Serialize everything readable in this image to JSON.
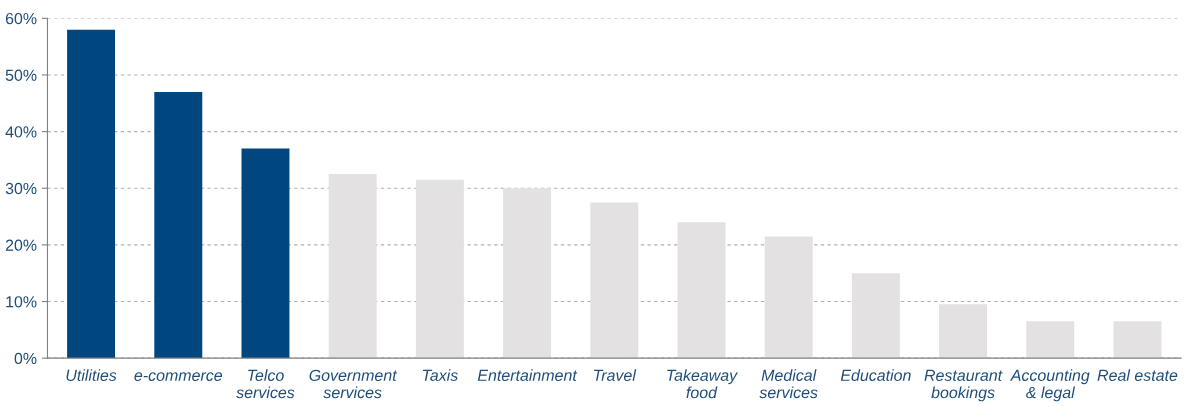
{
  "chart_data": {
    "type": "bar",
    "categories": [
      "Utilities",
      "e-commerce",
      "Telco\nservices",
      "Government\nservices",
      "Taxis",
      "Entertainment",
      "Travel",
      "Takeaway\nfood",
      "Medical\nservices",
      "Education",
      "Restaurant\nbookings",
      "Accounting\n& legal",
      "Real estate"
    ],
    "values": [
      58,
      47,
      37,
      32.5,
      31.5,
      30,
      27.5,
      24,
      21.5,
      15,
      9.5,
      6.5,
      6.5
    ],
    "colors": [
      "#00467f",
      "#00467f",
      "#00467f",
      "#e3e1e2",
      "#e3e1e2",
      "#e3e1e2",
      "#e3e1e2",
      "#e3e1e2",
      "#e3e1e2",
      "#e3e1e2",
      "#e3e1e2",
      "#e3e1e2",
      "#e3e1e2"
    ],
    "ylim": [
      0,
      60
    ],
    "yticks": [
      {
        "value": 0,
        "label": "0%"
      },
      {
        "value": 10,
        "label": "10%"
      },
      {
        "value": 20,
        "label": "20%"
      },
      {
        "value": 30,
        "label": "30%"
      },
      {
        "value": 40,
        "label": "40%"
      },
      {
        "value": 50,
        "label": "50%"
      },
      {
        "value": 60,
        "label": "60%"
      }
    ],
    "grid": "y"
  }
}
